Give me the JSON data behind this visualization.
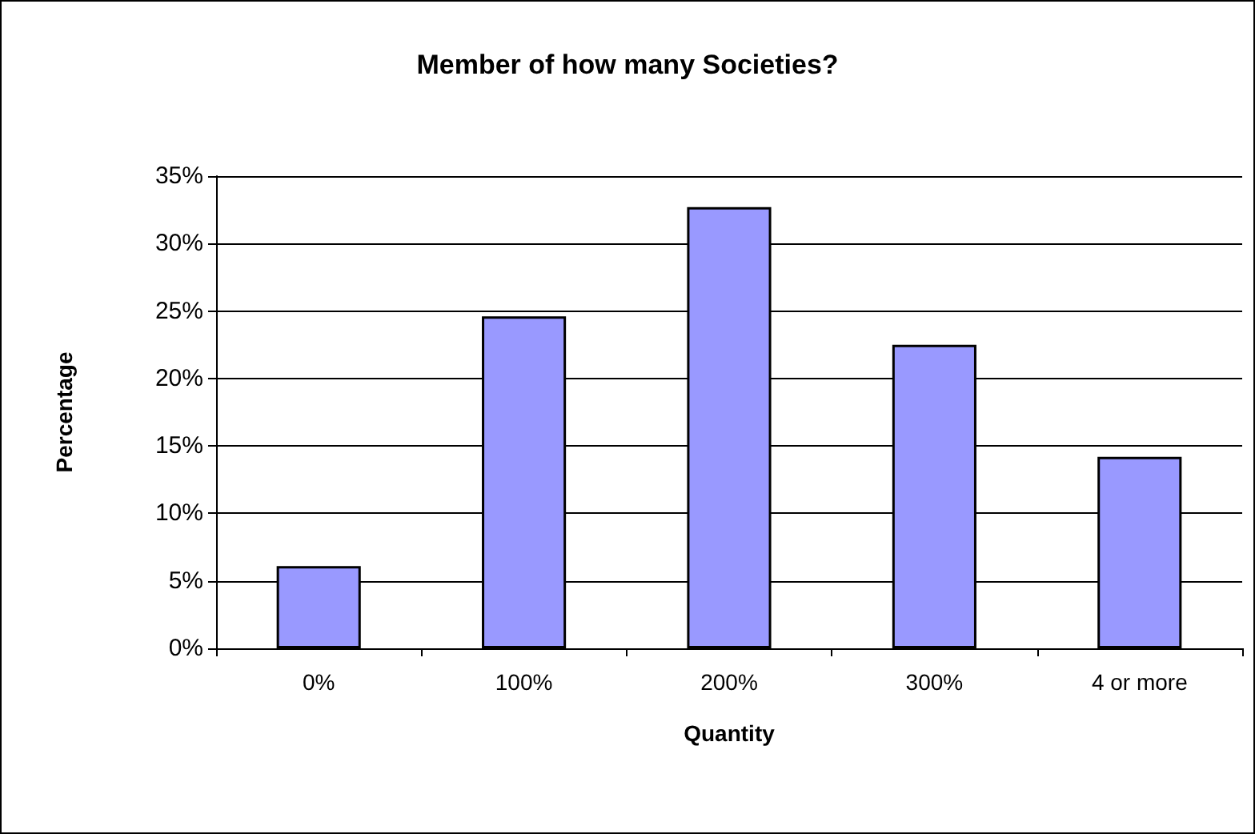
{
  "chart_data": {
    "type": "bar",
    "title": "Member of how many Societies?",
    "xlabel": "Quantity",
    "ylabel": "Percentage",
    "categories": [
      "0%",
      "100%",
      "200%",
      "300%",
      "4 or more"
    ],
    "values": [
      6.1,
      24.6,
      32.7,
      22.5,
      14.2
    ],
    "color": "#9999ff",
    "ylim": [
      0,
      35
    ],
    "yticks": [
      {
        "value": 0,
        "label": "0%"
      },
      {
        "value": 5,
        "label": "5%"
      },
      {
        "value": 10,
        "label": "10%"
      },
      {
        "value": 15,
        "label": "15%"
      },
      {
        "value": 20,
        "label": "20%"
      },
      {
        "value": 25,
        "label": "25%"
      },
      {
        "value": 30,
        "label": "30%"
      },
      {
        "value": 35,
        "label": "35%"
      }
    ],
    "grid": "y"
  }
}
